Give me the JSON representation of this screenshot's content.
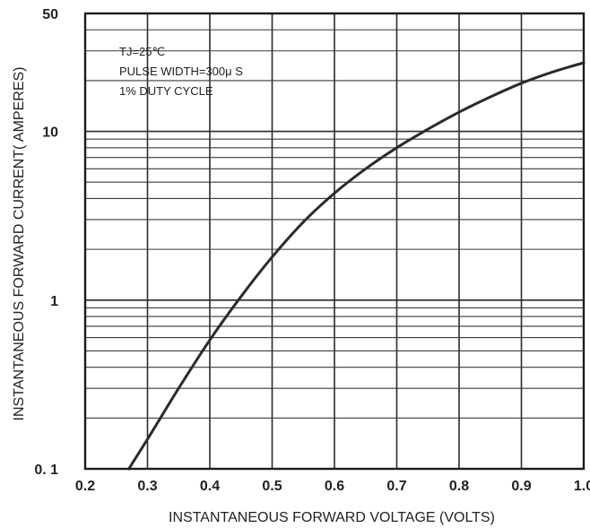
{
  "chart_data": {
    "type": "line",
    "xlabel": "INSTANTANEOUS FORWARD VOLTAGE (VOLTS)",
    "ylabel": "INSTANTANEOUS FORWARD CURRENT( AMPERES)",
    "xlim": [
      0.2,
      1.0
    ],
    "ylim": [
      0.1,
      50
    ],
    "y_scale": "log",
    "grid": true,
    "x_ticks": [
      0.2,
      0.3,
      0.4,
      0.5,
      0.6,
      0.7,
      0.8,
      0.9,
      1.0
    ],
    "x_tick_labels": [
      "0.2",
      "0.3",
      "0.4",
      "0.5",
      "0.6",
      "0.7",
      "0.8",
      "0.9",
      "1.0"
    ],
    "y_ticks": [
      0.1,
      1,
      10,
      50
    ],
    "y_tick_labels": [
      "0. 1",
      "1",
      "10",
      "50"
    ],
    "annotations": [
      "TJ=25℃",
      "PULSE WIDTH=300μ S",
      "1% DUTY CYCLE"
    ],
    "series": [
      {
        "x": [
          0.27,
          0.3,
          0.35,
          0.4,
          0.45,
          0.5,
          0.55,
          0.6,
          0.65,
          0.7,
          0.75,
          0.8,
          0.85,
          0.9,
          0.95,
          1.0
        ],
        "y": [
          0.1,
          0.15,
          0.3,
          0.58,
          1.05,
          1.8,
          2.9,
          4.3,
          6.0,
          8.0,
          10.3,
          13.0,
          16.0,
          19.3,
          22.5,
          25.5
        ]
      }
    ]
  },
  "colors": {
    "curve": "#2b2b2b",
    "grid": "#2a2a2a",
    "background": "#ffffff"
  }
}
